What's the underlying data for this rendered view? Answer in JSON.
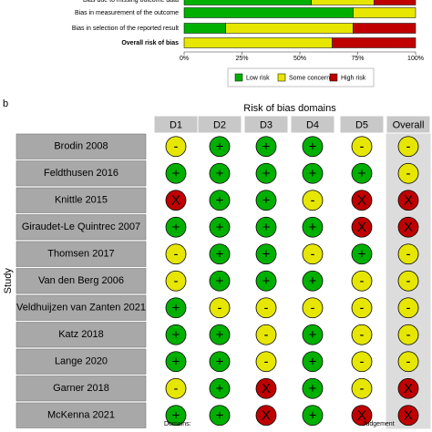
{
  "chart_data": [
    {
      "type": "barh-stacked",
      "categories": [
        "Bias due to missing outcome data",
        "Bias in measurement of the outcome",
        "Bias in selection of the reported result",
        "Overall risk of bias"
      ],
      "series": [
        {
          "name": "Low risk",
          "color": "#00b000",
          "values": [
            55,
            73,
            18,
            0
          ]
        },
        {
          "name": "Some concerns",
          "color": "#e6e600",
          "values": [
            27,
            27,
            55,
            64
          ]
        },
        {
          "name": "High risk",
          "color": "#c00000",
          "values": [
            18,
            0,
            27,
            36
          ]
        }
      ],
      "xlim": [
        0,
        100
      ],
      "xticks": [
        {
          "value": 0,
          "label": "0%"
        },
        {
          "value": 25,
          "label": "25%"
        },
        {
          "value": 50,
          "label": "50%"
        },
        {
          "value": 75,
          "label": "75%"
        },
        {
          "value": 100,
          "label": "100%"
        }
      ]
    },
    {
      "type": "traffic-light",
      "label": "b",
      "title": "Risk of bias domains",
      "ylabel": "Study",
      "columns": [
        "D1",
        "D2",
        "D3",
        "D4",
        "D5",
        "Overall"
      ],
      "rows": [
        "Brodin 2008",
        "Feldthusen 2016",
        "Knittle 2015",
        "Giraudet-Le Quintrec 2007",
        "Thomsen 2017",
        "Van den Berg 2006",
        "Veldhuijzen van Zanten 2021",
        "Katz 2018",
        "Lange 2020",
        "Garner 2018",
        "McKenna 2021"
      ],
      "values": [
        [
          "-",
          "+",
          "+",
          "+",
          "-",
          "-"
        ],
        [
          "+",
          "+",
          "+",
          "+",
          "+",
          "-"
        ],
        [
          "X",
          "+",
          "+",
          "-",
          "X",
          "X"
        ],
        [
          "+",
          "+",
          "+",
          "+",
          "X",
          "X"
        ],
        [
          "-",
          "+",
          "+",
          "-",
          "+",
          "-"
        ],
        [
          "-",
          "+",
          "+",
          "+",
          "-",
          "-"
        ],
        [
          "+",
          "-",
          "-",
          "-",
          "-",
          "-"
        ],
        [
          "+",
          "+",
          "-",
          "+",
          "-",
          "-"
        ],
        [
          "+",
          "+",
          "-",
          "+",
          "-",
          "-"
        ],
        [
          "-",
          "+",
          "X",
          "+",
          "-",
          "X"
        ],
        [
          "+",
          "+",
          "X",
          "+",
          "X",
          "X"
        ]
      ],
      "symbol_colors": {
        "+": "#00b000",
        "-": "#e6e600",
        "X": "#c00000"
      },
      "footer": [
        "Domains:",
        "Judgement"
      ]
    }
  ]
}
